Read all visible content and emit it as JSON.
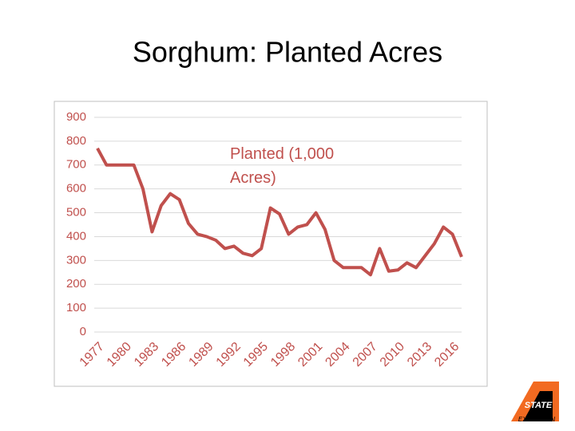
{
  "chart_data": {
    "type": "line",
    "title": "Sorghum: Planted Acres",
    "categories": [
      "1977",
      null,
      null,
      "1980",
      null,
      null,
      "1983",
      null,
      null,
      "1986",
      null,
      null,
      "1989",
      null,
      null,
      "1992",
      null,
      null,
      "1995",
      null,
      null,
      "1998",
      null,
      null,
      "2001",
      null,
      null,
      "2004",
      null,
      null,
      "2007",
      null,
      null,
      "2010",
      null,
      null,
      "2013",
      null,
      null,
      "2016",
      null
    ],
    "series": [
      {
        "name": "Planted (1,000 Acres)",
        "color": "#c0504d",
        "values": [
          770,
          700,
          700,
          700,
          700,
          600,
          420,
          530,
          580,
          555,
          455,
          410,
          400,
          385,
          350,
          360,
          330,
          320,
          350,
          520,
          495,
          410,
          440,
          450,
          500,
          430,
          300,
          270,
          270,
          270,
          240,
          350,
          255,
          260,
          290,
          270,
          320,
          370,
          440,
          410,
          315
        ]
      }
    ],
    "ylim": [
      0,
      900
    ],
    "yticks": [
      0,
      100,
      200,
      300,
      400,
      500,
      600,
      700,
      800,
      900
    ],
    "grid": true
  },
  "logo": {
    "lines": [
      "STATE",
      "EXTENSION"
    ]
  }
}
